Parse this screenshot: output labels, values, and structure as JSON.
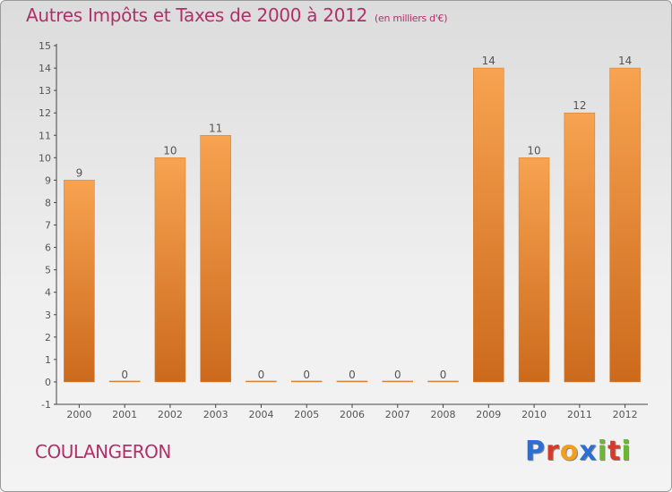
{
  "title": "Autres Impôts et Taxes de 2000 à 2012",
  "subtitle": "(en milliers d'€)",
  "commune": "COULANGERON",
  "logo": {
    "text": "Proxiti",
    "letters": [
      {
        "ch": "P",
        "color": "#2b6fd6"
      },
      {
        "ch": "r",
        "color": "#d83a2a"
      },
      {
        "ch": "o",
        "color": "#f0a020"
      },
      {
        "ch": "x",
        "color": "#2b6fd6"
      },
      {
        "ch": "i",
        "color": "#6ab830"
      },
      {
        "ch": "t",
        "color": "#d83a2a"
      },
      {
        "ch": "i",
        "color": "#6ab830"
      }
    ]
  },
  "colors": {
    "bar_light": "#f7a350",
    "bar_dark": "#cc6a1c",
    "accent": "#b0306a"
  },
  "chart_data": {
    "type": "bar",
    "categories": [
      "2000",
      "2001",
      "2002",
      "2003",
      "2004",
      "2005",
      "2006",
      "2007",
      "2008",
      "2009",
      "2010",
      "2011",
      "2012"
    ],
    "values": [
      9,
      0,
      10,
      11,
      0,
      0,
      0,
      0,
      0,
      14,
      10,
      12,
      14
    ],
    "title": "Autres Impôts et Taxes de 2000 à 2012",
    "xlabel": "",
    "ylabel": "",
    "ylim": [
      -1,
      15
    ],
    "yticks": [
      -1,
      0,
      1,
      2,
      3,
      4,
      5,
      6,
      7,
      8,
      9,
      10,
      11,
      12,
      13,
      14,
      15
    ],
    "grid": false,
    "legend": "none"
  }
}
